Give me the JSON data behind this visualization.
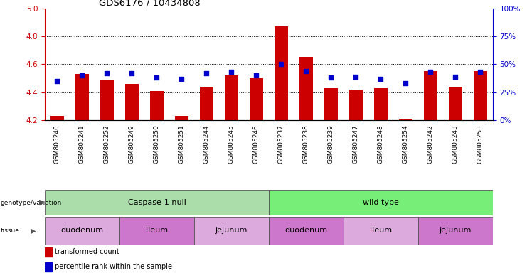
{
  "title": "GDS6176 / 10434808",
  "samples": [
    "GSM805240",
    "GSM805241",
    "GSM805252",
    "GSM805249",
    "GSM805250",
    "GSM805251",
    "GSM805244",
    "GSM805245",
    "GSM805246",
    "GSM805237",
    "GSM805238",
    "GSM805239",
    "GSM805247",
    "GSM805248",
    "GSM805254",
    "GSM805242",
    "GSM805243",
    "GSM805253"
  ],
  "red_values": [
    4.23,
    4.53,
    4.49,
    4.46,
    4.41,
    4.23,
    4.44,
    4.52,
    4.5,
    4.87,
    4.65,
    4.43,
    4.42,
    4.43,
    4.21,
    4.55,
    4.44,
    4.55
  ],
  "blue_values": [
    35,
    40,
    42,
    42,
    38,
    37,
    42,
    43,
    40,
    50,
    44,
    38,
    39,
    37,
    33,
    43,
    39,
    43
  ],
  "ylim_left": [
    4.2,
    5.0
  ],
  "ylim_right": [
    0,
    100
  ],
  "yticks_left": [
    4.2,
    4.4,
    4.6,
    4.8,
    5.0
  ],
  "yticks_right": [
    0,
    25,
    50,
    75,
    100
  ],
  "ytick_labels_right": [
    "0%",
    "25%",
    "50%",
    "75%",
    "100%"
  ],
  "geno_groups": [
    {
      "label": "Caspase-1 null",
      "start": 0,
      "end": 9,
      "color": "#aaddaa"
    },
    {
      "label": "wild type",
      "start": 9,
      "end": 18,
      "color": "#77ee77"
    }
  ],
  "tissue_groups": [
    {
      "label": "duodenum",
      "start": 0,
      "end": 3,
      "color": "#ddaadd"
    },
    {
      "label": "ileum",
      "start": 3,
      "end": 6,
      "color": "#cc77cc"
    },
    {
      "label": "jejunum",
      "start": 6,
      "end": 9,
      "color": "#ddaadd"
    },
    {
      "label": "duodenum",
      "start": 9,
      "end": 12,
      "color": "#cc77cc"
    },
    {
      "label": "ileum",
      "start": 12,
      "end": 15,
      "color": "#ddaadd"
    },
    {
      "label": "jejunum",
      "start": 15,
      "end": 18,
      "color": "#cc77cc"
    }
  ],
  "bar_color": "#CC0000",
  "dot_color": "#0000CC",
  "tick_color_left": "#CC0000",
  "tick_color_right": "#0000CC",
  "grid_lines": [
    4.4,
    4.6,
    4.8
  ],
  "legend": [
    {
      "color": "#CC0000",
      "label": "transformed count"
    },
    {
      "color": "#0000CC",
      "label": "percentile rank within the sample"
    }
  ]
}
